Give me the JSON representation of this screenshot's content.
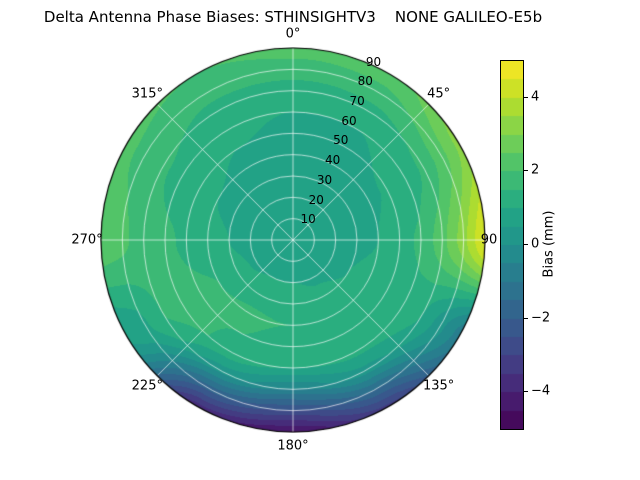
{
  "chart_data": {
    "type": "polar_contour",
    "title": "Delta Antenna Phase Biases: STHINSIGHTV3    NONE GALILEO-E5b",
    "colorbar": {
      "label": "Bias (mm)",
      "min": -5,
      "max": 5,
      "band_step": 0.5,
      "ticks": [
        4,
        2,
        0,
        -2,
        -4
      ],
      "tick_labels": [
        "4",
        "2",
        "0",
        "−2",
        "−4"
      ]
    },
    "colormap": {
      "name": "viridis",
      "stops": [
        "#440154",
        "#482475",
        "#414487",
        "#355f8d",
        "#2a788e",
        "#21918c",
        "#22a884",
        "#44bf70",
        "#7ad151",
        "#bddf26",
        "#fde725"
      ]
    },
    "grid": {
      "radial_step": 10,
      "r_max": 90,
      "spoke_step_deg": 45,
      "gridline_color": "rgba(255,255,255,0.75)"
    },
    "azimuth_tick_labels": [
      {
        "angle": 0,
        "text": "0°"
      },
      {
        "angle": 45,
        "text": "45°"
      },
      {
        "angle": 90,
        "text": "90"
      },
      {
        "angle": 135,
        "text": "135°"
      },
      {
        "angle": 180,
        "text": "180°"
      },
      {
        "angle": 225,
        "text": "225°"
      },
      {
        "angle": 270,
        "text": "270°"
      },
      {
        "angle": 315,
        "text": "315°"
      }
    ],
    "radial_tick_labels": [
      "10",
      "20",
      "30",
      "40",
      "50",
      "60",
      "70",
      "80",
      "90"
    ],
    "radial_label_angle_deg": 22.5,
    "field": {
      "azimuth_deg": [
        0,
        30,
        60,
        90,
        120,
        150,
        180,
        210,
        240,
        270,
        300,
        330
      ],
      "radius": [
        0,
        20,
        40,
        60,
        70,
        80,
        90
      ],
      "bias_mm": [
        [
          0.5,
          0.5,
          0.8,
          1.0,
          1.2,
          1.8,
          2.2
        ],
        [
          0.5,
          0.6,
          0.8,
          1.0,
          1.3,
          1.8,
          2.3
        ],
        [
          0.5,
          0.6,
          0.9,
          1.2,
          1.6,
          2.3,
          3.2
        ],
        [
          0.5,
          0.7,
          1.0,
          1.6,
          2.3,
          3.3,
          4.6
        ],
        [
          0.5,
          0.8,
          1.2,
          1.3,
          1.0,
          0.2,
          -0.8
        ],
        [
          0.5,
          0.9,
          1.4,
          1.2,
          0.3,
          -1.5,
          -3.2
        ],
        [
          0.5,
          1.0,
          1.5,
          1.0,
          -0.5,
          -2.6,
          -4.6
        ],
        [
          0.5,
          1.0,
          1.6,
          1.4,
          0.2,
          -1.8,
          -3.8
        ],
        [
          0.5,
          0.9,
          1.5,
          1.7,
          1.5,
          0.9,
          0.6
        ],
        [
          0.5,
          0.8,
          1.2,
          1.6,
          1.8,
          2.1,
          2.3
        ],
        [
          0.5,
          0.7,
          1.0,
          1.3,
          1.6,
          1.9,
          2.1
        ],
        [
          0.5,
          0.6,
          0.9,
          1.1,
          1.3,
          1.7,
          2.0
        ]
      ]
    }
  }
}
